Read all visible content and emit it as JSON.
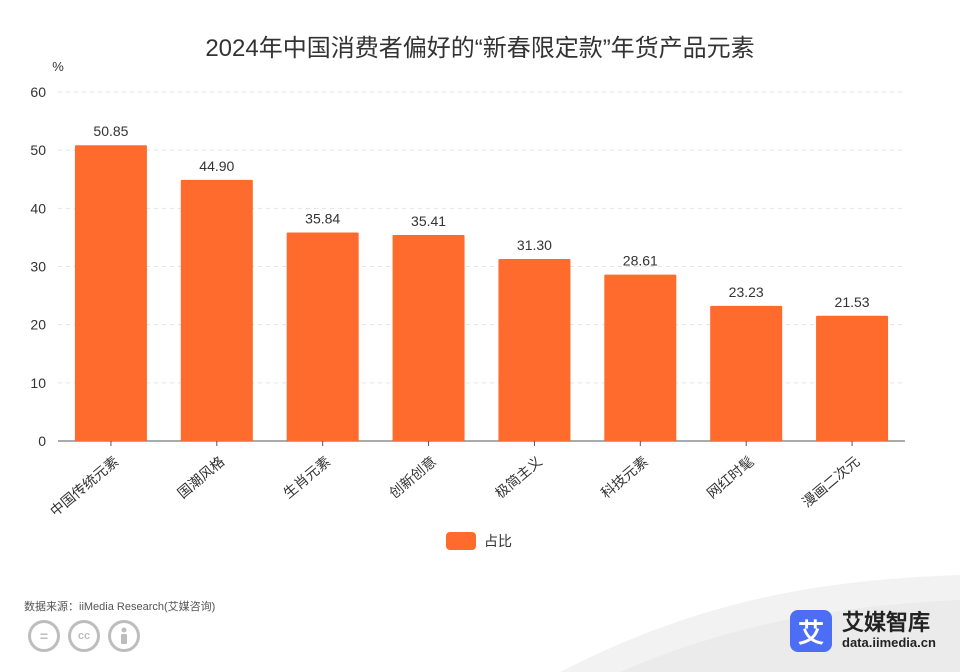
{
  "chart_data": {
    "type": "bar",
    "title": "2024年中国消费者偏好的“新春限定款”年货产品元素",
    "ylabel": "%",
    "xlabel": "",
    "categories": [
      "中国传统元素",
      "国潮风格",
      "生肖元素",
      "创新创意",
      "极简主义",
      "科技元素",
      "网红时髦",
      "漫画二次元"
    ],
    "series": [
      {
        "name": "占比",
        "values": [
          50.85,
          44.9,
          35.84,
          35.41,
          31.3,
          28.61,
          23.23,
          21.53
        ]
      }
    ],
    "value_labels": [
      "50.85",
      "44.90",
      "35.84",
      "35.41",
      "31.30",
      "28.61",
      "23.23",
      "21.53"
    ],
    "ylim": [
      0,
      60
    ],
    "yticks": [
      0,
      10,
      20,
      30,
      40,
      50,
      60
    ],
    "grid": true,
    "legend_position": "bottom-center",
    "bar_color": "#ff6b2c"
  },
  "footer": {
    "source": "数据来源：iiMedia Research(艾媒咨询)",
    "brand_name": "艾媒智库",
    "brand_url": "data.iimedia.cn",
    "logo_glyph": "艾",
    "license_icons": [
      "equals-icon",
      "cc-icon",
      "person-icon"
    ]
  }
}
